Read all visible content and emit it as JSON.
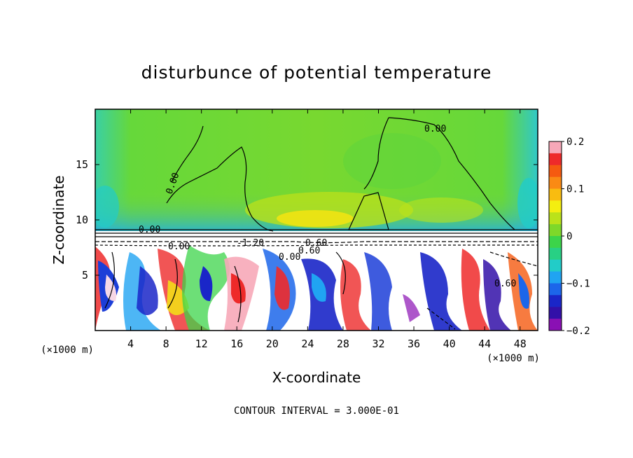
{
  "chart_data": {
    "type": "heatmap",
    "title": "disturbunce of potential temperature",
    "xlabel": "X-coordinate",
    "ylabel": "Z-coordinate",
    "x_unit": "(×1000 m)",
    "y_unit": "(×1000 m)",
    "xlim": [
      0,
      50
    ],
    "ylim": [
      0,
      20
    ],
    "x_ticks": [
      4,
      8,
      12,
      16,
      20,
      24,
      28,
      32,
      36,
      40,
      44,
      48
    ],
    "y_ticks": [
      5,
      10,
      15
    ],
    "colorbar": {
      "min": -0.2,
      "max": 0.2,
      "ticks": [
        0.2,
        0.1,
        0,
        -0.1,
        -0.2
      ],
      "tick_labels": [
        "0.2",
        "0.1",
        "0",
        "−0.1",
        "−0.2"
      ],
      "colors": [
        "#f7a8b8",
        "#ee2a2a",
        "#f55a10",
        "#fa8a14",
        "#f9bc10",
        "#f4ee10",
        "#bbe21a",
        "#7ed82a",
        "#3cd44a",
        "#28d084",
        "#22ccc8",
        "#20a4f2",
        "#1c66ea",
        "#1a26c8",
        "#3210a8",
        "#8a10b4"
      ]
    },
    "contour_labels": [
      "0.00",
      "0.00",
      "0.00",
      "0.00",
      "-1.20",
      "0.60",
      "0.60",
      "0.00",
      "0.60"
    ],
    "contour_interval": "CONTOUR INTERVAL = 3.000E-01"
  }
}
